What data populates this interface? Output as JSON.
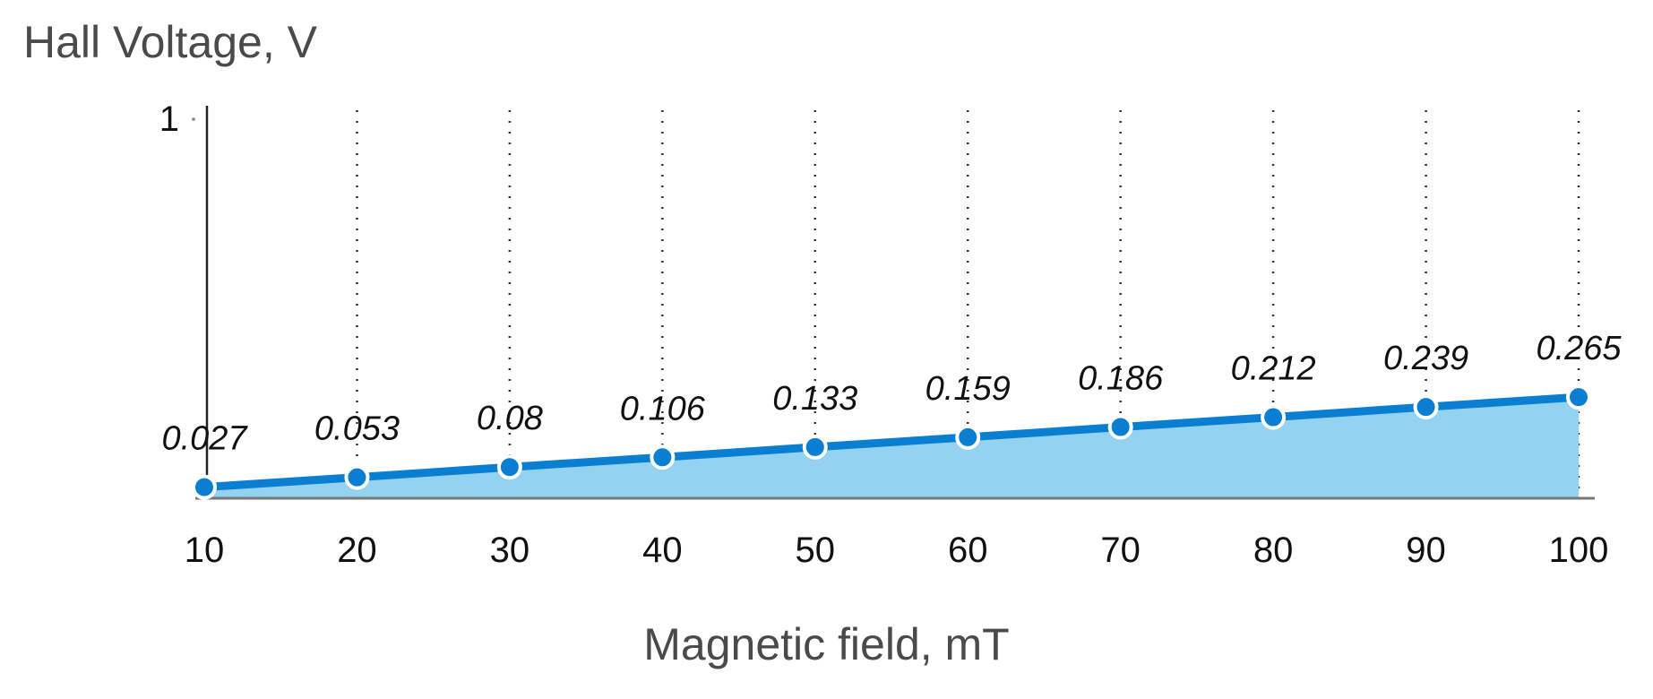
{
  "chart_data": {
    "type": "area",
    "title": "",
    "xlabel": "Magnetic field, mT",
    "ylabel": "Hall Voltage, V",
    "x": [
      10,
      20,
      30,
      40,
      50,
      60,
      70,
      80,
      90,
      100
    ],
    "series": [
      {
        "values": [
          0.027,
          0.053,
          0.08,
          0.106,
          0.133,
          0.159,
          0.186,
          0.212,
          0.239,
          0.265
        ],
        "data_labels": [
          "0.027",
          "0.053",
          "0.08",
          "0.106",
          "0.133",
          "0.159",
          "0.186",
          "0.212",
          "0.239",
          "0.265"
        ]
      }
    ],
    "x_ticks": [
      "10",
      "20",
      "30",
      "40",
      "50",
      "60",
      "70",
      "80",
      "90",
      "100"
    ],
    "y_ticks": [
      "1"
    ],
    "xlim": [
      10,
      100
    ],
    "ylim": [
      0,
      1
    ],
    "grid": "vertical dotted",
    "colors": {
      "line": "#0a7fd2",
      "fill": "#93d2f0",
      "marker": "#0a7fd2",
      "marker_edge": "#ffffff"
    }
  }
}
